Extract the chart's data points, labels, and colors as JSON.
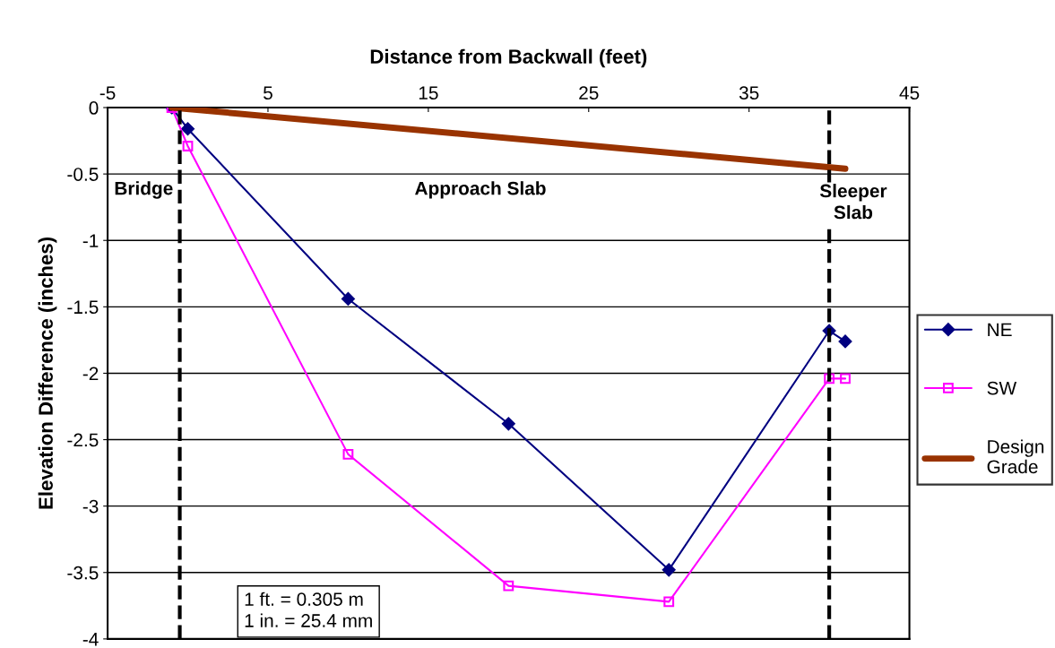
{
  "chart_data": {
    "type": "line",
    "xlabel": "Distance from Backwall (feet)",
    "ylabel": "Elevation Difference (inches)",
    "series": [
      {
        "name": "NE",
        "color": "#000080",
        "x": [
          -1,
          0,
          10,
          20,
          30,
          40,
          41
        ],
        "values": [
          0,
          -0.16,
          -1.44,
          -2.38,
          -3.48,
          -1.68,
          -1.76
        ],
        "marker": "diamond"
      },
      {
        "name": "SW",
        "color": "#ff00ff",
        "x": [
          -1,
          0,
          10,
          20,
          30,
          40,
          41
        ],
        "values": [
          0,
          -0.29,
          -2.61,
          -3.6,
          -3.72,
          -2.04,
          -2.04
        ],
        "marker": "square"
      },
      {
        "name": "Design Grade",
        "color": "#993300",
        "x": [
          -1,
          41
        ],
        "values": [
          0,
          -0.46
        ],
        "marker": "none"
      }
    ],
    "xlim": [
      -5,
      45
    ],
    "xticks": [
      -5,
      5,
      15,
      25,
      35,
      45
    ],
    "ylim": [
      -4,
      0
    ],
    "yticks": [
      -4,
      -3.5,
      -3,
      -2.5,
      -2,
      -1.5,
      -1,
      -0.5,
      0
    ],
    "grid": "y",
    "legend": "right",
    "line_style": "solid",
    "ref_lines": [
      {
        "axis": "x",
        "value": -0.5,
        "color": "#000000",
        "line_style": "dashed"
      },
      {
        "axis": "x",
        "value": 40,
        "color": "#000000",
        "line_style": "dashed"
      }
    ],
    "annotations": [
      "Bridge",
      "Approach Slab",
      "Sleeper\nSlab",
      "1 ft. = 0.305 m\n1 in. = 25.4 mm"
    ]
  }
}
